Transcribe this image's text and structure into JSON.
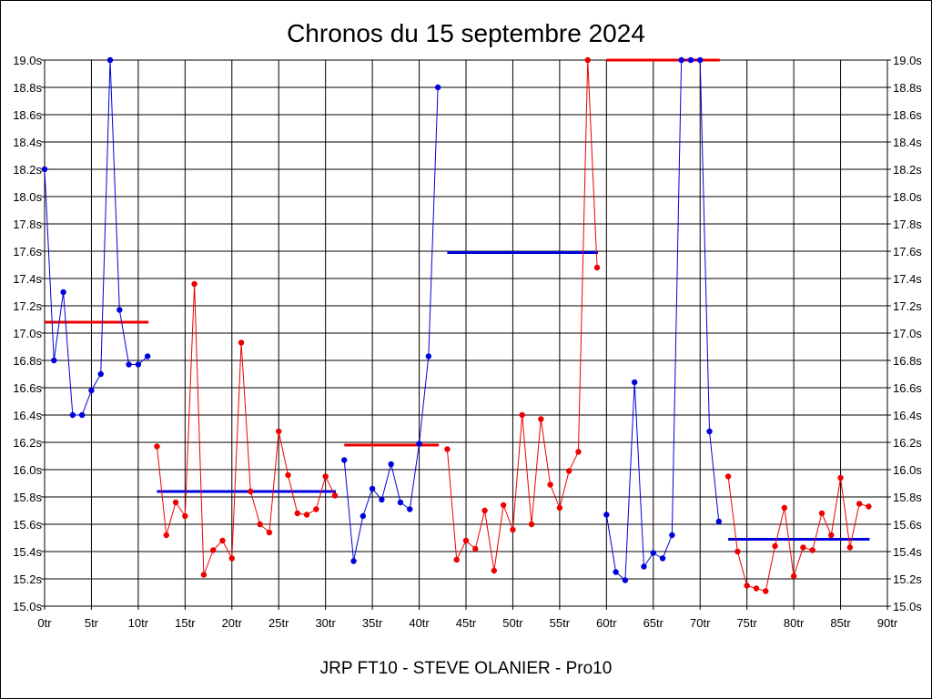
{
  "window": {
    "title": "Chronos du 15 septembre 2024",
    "subtitle": "JRP FT10 - STEVE OLANIER - Pro10"
  },
  "colors": {
    "blue": "#0000dd",
    "red": "#ee0000",
    "grid": "#000000",
    "background": "#ffffff"
  },
  "chart_data": {
    "type": "line",
    "title": "Chronos du 15 septembre 2024",
    "subtitle": "JRP FT10 - STEVE OLANIER - Pro10",
    "xlabel": "",
    "ylabel": "",
    "xlim": [
      0,
      90
    ],
    "ylim": [
      15.0,
      19.0
    ],
    "grid": true,
    "x_ticks": [
      0,
      5,
      10,
      15,
      20,
      25,
      30,
      35,
      40,
      45,
      50,
      55,
      60,
      65,
      70,
      75,
      80,
      85,
      90
    ],
    "x_tick_labels": [
      "0tr",
      "5tr",
      "10tr",
      "15tr",
      "20tr",
      "25tr",
      "30tr",
      "35tr",
      "40tr",
      "45tr",
      "50tr",
      "55tr",
      "60tr",
      "65tr",
      "70tr",
      "75tr",
      "80tr",
      "85tr",
      "90tr"
    ],
    "y_ticks": [
      15.0,
      15.2,
      15.4,
      15.6,
      15.8,
      16.0,
      16.2,
      16.4,
      16.6,
      16.8,
      17.0,
      17.2,
      17.4,
      17.6,
      17.8,
      18.0,
      18.2,
      18.4,
      18.6,
      18.8,
      19.0
    ],
    "y_tick_labels": [
      "15.0s",
      "15.2s",
      "15.4s",
      "15.6s",
      "15.8s",
      "16.0s",
      "16.2s",
      "16.4s",
      "16.6s",
      "16.8s",
      "17.0s",
      "17.2s",
      "17.4s",
      "17.6s",
      "17.8s",
      "18.0s",
      "18.2s",
      "18.4s",
      "18.6s",
      "18.8s",
      "19.0s"
    ],
    "series": [
      {
        "color": "#0000dd",
        "x": [
          0,
          1,
          2,
          3,
          4,
          5,
          6,
          7,
          8,
          9,
          10,
          11
        ],
        "y": [
          18.2,
          16.8,
          17.3,
          16.4,
          16.4,
          16.58,
          16.7,
          19.0,
          17.17,
          16.77,
          16.77,
          16.83
        ],
        "mean": 17.08,
        "mean_color": "#ee0000",
        "mean_range": [
          0,
          11
        ]
      },
      {
        "color": "#ee0000",
        "x": [
          12,
          13,
          14,
          15,
          16,
          17,
          18,
          19,
          20,
          21,
          22,
          23,
          24,
          25,
          26,
          27,
          28,
          29,
          30,
          31
        ],
        "y": [
          16.17,
          15.52,
          15.76,
          15.66,
          17.36,
          15.23,
          15.41,
          15.48,
          15.35,
          16.93,
          15.84,
          15.6,
          15.54,
          16.28,
          15.96,
          15.68,
          15.67,
          15.71,
          15.95,
          15.81
        ],
        "mean": 15.84,
        "mean_color": "#0000dd",
        "mean_range": [
          12,
          31
        ]
      },
      {
        "color": "#0000dd",
        "x": [
          32,
          33,
          34,
          35,
          36,
          37,
          38,
          39,
          40,
          41,
          42
        ],
        "y": [
          16.07,
          15.33,
          15.66,
          15.86,
          15.78,
          16.04,
          15.76,
          15.71,
          16.19,
          16.83,
          18.8
        ],
        "mean": 16.18,
        "mean_color": "#ee0000",
        "mean_range": [
          32,
          42
        ]
      },
      {
        "color": "#ee0000",
        "x": [
          43,
          44,
          45,
          46,
          47,
          48,
          49,
          50,
          51,
          52,
          53,
          54,
          55,
          56,
          57,
          58,
          59
        ],
        "y": [
          16.15,
          15.34,
          15.48,
          15.42,
          15.7,
          15.26,
          15.74,
          15.56,
          16.4,
          15.6,
          16.37,
          15.89,
          15.72,
          15.99,
          16.13,
          19.0,
          17.48
        ],
        "mean": 17.59,
        "mean_color": "#0000dd",
        "mean_range": [
          43,
          59
        ]
      },
      {
        "color": "#0000dd",
        "x": [
          60,
          61,
          62,
          63,
          64,
          65,
          66,
          67,
          68,
          69,
          70,
          71,
          72
        ],
        "y": [
          15.67,
          15.25,
          15.19,
          16.64,
          15.29,
          15.39,
          15.35,
          15.52,
          19.0,
          19.0,
          19.0,
          16.28,
          15.62
        ],
        "mean": 19.0,
        "mean_color": "#ee0000",
        "mean_range": [
          60,
          72
        ]
      },
      {
        "color": "#ee0000",
        "x": [
          73,
          74,
          75,
          76,
          77,
          78,
          79,
          80,
          81,
          82,
          83,
          84,
          85,
          86,
          87,
          88
        ],
        "y": [
          15.95,
          15.4,
          15.15,
          15.13,
          15.11,
          15.44,
          15.72,
          15.22,
          15.43,
          15.41,
          15.68,
          15.52,
          15.94,
          15.43,
          15.75,
          15.73
        ],
        "mean": 15.49,
        "mean_color": "#0000dd",
        "mean_range": [
          73,
          88
        ]
      }
    ]
  }
}
